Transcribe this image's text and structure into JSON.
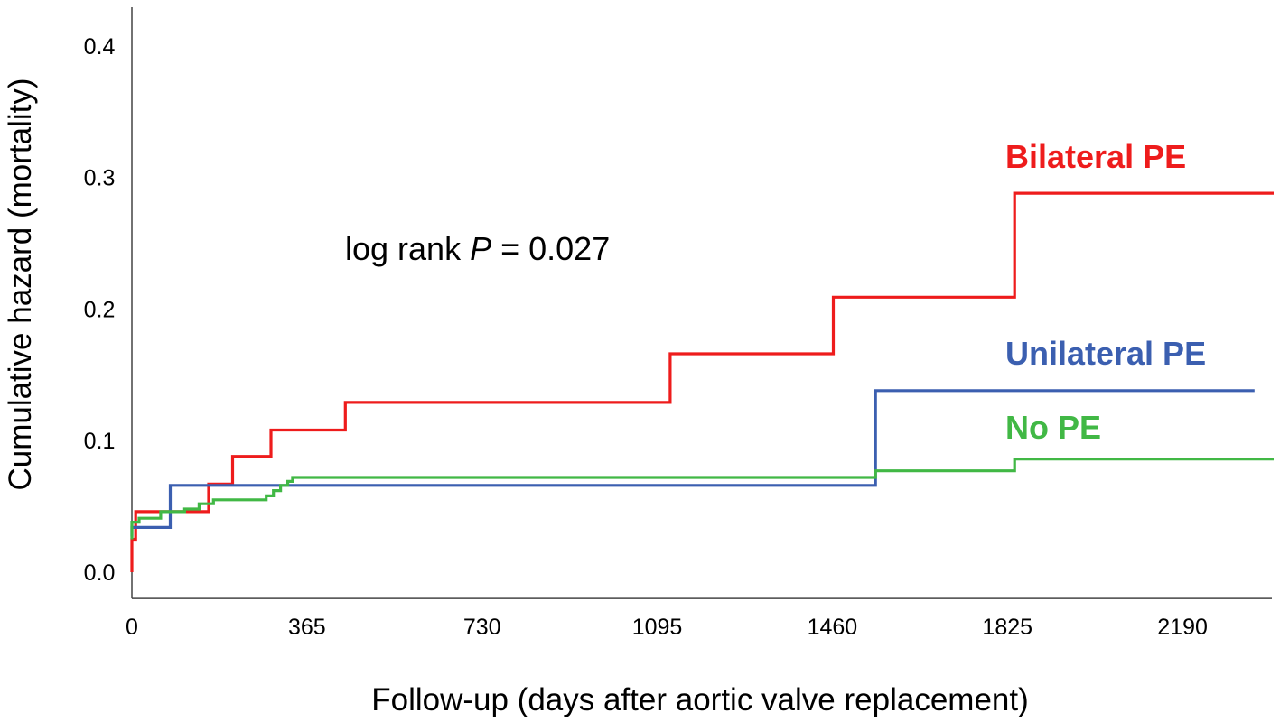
{
  "chart_data": {
    "type": "line",
    "step": true,
    "xlabel": "Follow-up (days after aortic valve replacement)",
    "ylabel": "Cumulative hazard (mortality)",
    "xticks": [
      0,
      365,
      730,
      1095,
      1460,
      1825,
      2190
    ],
    "yticks": [
      "0.0",
      "0.1",
      "0.2",
      "0.3",
      "0.4"
    ],
    "xlim": [
      0,
      2380
    ],
    "ylim": [
      -0.02,
      0.42
    ],
    "grid": false,
    "annotation": {
      "prefix": "log rank ",
      "italic": "P",
      "suffix": " = 0.027"
    },
    "series": [
      {
        "name": "Bilateral PE",
        "color": "#ee1c1c",
        "points": [
          [
            0,
            0.0
          ],
          [
            0,
            0.025
          ],
          [
            8,
            0.025
          ],
          [
            8,
            0.046
          ],
          [
            160,
            0.046
          ],
          [
            160,
            0.067
          ],
          [
            210,
            0.067
          ],
          [
            210,
            0.088
          ],
          [
            290,
            0.088
          ],
          [
            290,
            0.108
          ],
          [
            445,
            0.108
          ],
          [
            445,
            0.129
          ],
          [
            1122,
            0.129
          ],
          [
            1122,
            0.166
          ],
          [
            1462,
            0.166
          ],
          [
            1462,
            0.209
          ],
          [
            1840,
            0.209
          ],
          [
            1840,
            0.288
          ],
          [
            2380,
            0.288
          ]
        ]
      },
      {
        "name": "Unilateral PE",
        "color": "#3b5fb0",
        "points": [
          [
            0,
            0.027
          ],
          [
            0,
            0.034
          ],
          [
            80,
            0.034
          ],
          [
            80,
            0.066
          ],
          [
            1550,
            0.066
          ],
          [
            1550,
            0.138
          ],
          [
            2340,
            0.138
          ]
        ]
      },
      {
        "name": "No PE",
        "color": "#41b845",
        "points": [
          [
            0,
            0.025
          ],
          [
            0,
            0.038
          ],
          [
            15,
            0.038
          ],
          [
            15,
            0.041
          ],
          [
            60,
            0.041
          ],
          [
            60,
            0.046
          ],
          [
            110,
            0.046
          ],
          [
            110,
            0.048
          ],
          [
            140,
            0.048
          ],
          [
            140,
            0.052
          ],
          [
            170,
            0.052
          ],
          [
            170,
            0.055
          ],
          [
            280,
            0.055
          ],
          [
            280,
            0.058
          ],
          [
            295,
            0.058
          ],
          [
            295,
            0.062
          ],
          [
            310,
            0.062
          ],
          [
            310,
            0.066
          ],
          [
            325,
            0.066
          ],
          [
            325,
            0.069
          ],
          [
            335,
            0.069
          ],
          [
            335,
            0.072
          ],
          [
            1550,
            0.072
          ],
          [
            1550,
            0.077
          ],
          [
            1840,
            0.077
          ],
          [
            1840,
            0.086
          ],
          [
            2380,
            0.086
          ]
        ]
      }
    ]
  }
}
